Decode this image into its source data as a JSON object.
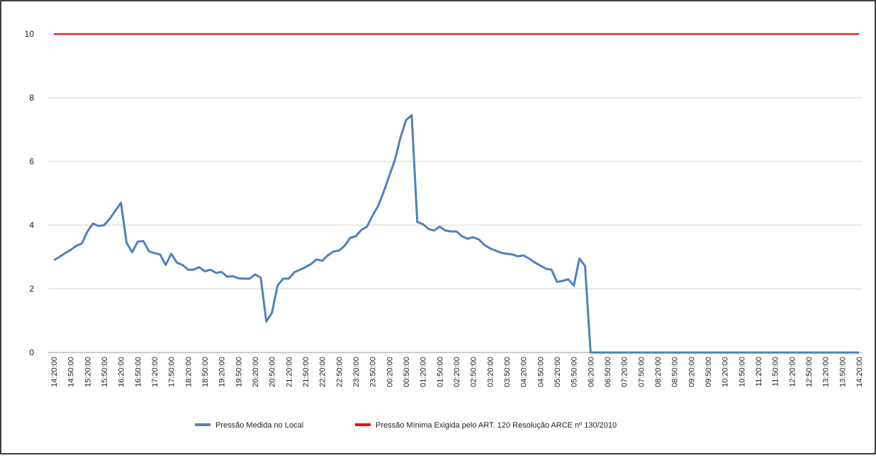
{
  "chart_data": {
    "type": "line",
    "categories": [
      "14:20:00",
      null,
      null,
      "14:50:00",
      null,
      null,
      "15:20:00",
      null,
      null,
      "15:50:00",
      null,
      null,
      "16:20:00",
      null,
      null,
      "16:50:00",
      null,
      null,
      "17:20:00",
      null,
      null,
      "17:50:00",
      null,
      null,
      "18:20:00",
      null,
      null,
      "18:50:00",
      null,
      null,
      "19:20:00",
      null,
      null,
      "19:50:00",
      null,
      null,
      "20:20:00",
      null,
      null,
      "20:50:00",
      null,
      null,
      "21:20:00",
      null,
      null,
      "21:50:00",
      null,
      null,
      "22:20:00",
      null,
      null,
      "22:50:00",
      null,
      null,
      "23:20:00",
      null,
      null,
      "23:50:00",
      null,
      null,
      "00:20:00",
      null,
      null,
      "00:50:00",
      null,
      null,
      "01:20:00",
      null,
      null,
      "01:50:00",
      null,
      null,
      "02:20:00",
      null,
      null,
      "02:50:00",
      null,
      null,
      "03:20:00",
      null,
      null,
      "03:50:00",
      null,
      null,
      "04:20:00",
      null,
      null,
      "04:50:00",
      null,
      null,
      "05:20:00",
      null,
      null,
      "05:50:00",
      null,
      null,
      "06:20:00",
      null,
      null,
      "06:50:00",
      null,
      null,
      "07:20:00",
      null,
      null,
      "07:50:00",
      null,
      null,
      "08:20:00",
      null,
      null,
      "08:50:00",
      null,
      null,
      "09:20:00",
      null,
      null,
      "09:50:00",
      null,
      null,
      "10:20:00",
      null,
      null,
      "10:50:00",
      null,
      null,
      "11:20:00",
      null,
      null,
      "11:50:00",
      null,
      null,
      "12:20:00",
      null,
      null,
      "12:50:00",
      null,
      null,
      "13:20:00",
      null,
      null,
      "13:50:00",
      null,
      null,
      "14:20:00"
    ],
    "series": [
      {
        "name": "Pressão Medida no Local",
        "color": "#4f81bd",
        "values": [
          2.9,
          3.0,
          3.12,
          3.22,
          3.35,
          3.42,
          3.8,
          4.05,
          3.97,
          4.0,
          4.2,
          4.45,
          4.7,
          3.45,
          3.15,
          3.48,
          3.5,
          3.18,
          3.12,
          3.08,
          2.75,
          3.1,
          2.82,
          2.75,
          2.6,
          2.6,
          2.68,
          2.55,
          2.6,
          2.5,
          2.53,
          2.38,
          2.4,
          2.33,
          2.32,
          2.32,
          2.45,
          2.35,
          0.97,
          1.25,
          2.1,
          2.32,
          2.32,
          2.52,
          2.6,
          2.68,
          2.78,
          2.92,
          2.88,
          3.05,
          3.17,
          3.2,
          3.35,
          3.6,
          3.65,
          3.85,
          3.95,
          4.3,
          4.6,
          5.05,
          5.55,
          6.05,
          6.75,
          7.3,
          7.45,
          4.1,
          4.03,
          3.88,
          3.83,
          3.95,
          3.83,
          3.8,
          3.8,
          3.65,
          3.57,
          3.62,
          3.55,
          3.38,
          3.27,
          3.2,
          3.13,
          3.1,
          3.08,
          3.02,
          3.05,
          2.95,
          2.83,
          2.73,
          2.63,
          2.6,
          2.22,
          2.25,
          2.3,
          2.1,
          2.95,
          2.72,
          0,
          0,
          0,
          0,
          0,
          0,
          0,
          0,
          0,
          0,
          0,
          0,
          0,
          0,
          0,
          0,
          0,
          0,
          0,
          0,
          0,
          0,
          0,
          0,
          0,
          0,
          0,
          0,
          0,
          0,
          0,
          0,
          0,
          0,
          0,
          0,
          0,
          0,
          0,
          0,
          0,
          0,
          0,
          0,
          0,
          0,
          0,
          0,
          0
        ]
      },
      {
        "name": "Pressão Mínima Exigida pelo ART. 120 Resolução ARCE nº 130/2010",
        "color": "#ff0000",
        "values": [
          10,
          10,
          10,
          10,
          10,
          10,
          10,
          10,
          10,
          10,
          10,
          10,
          10,
          10,
          10,
          10,
          10,
          10,
          10,
          10,
          10,
          10,
          10,
          10,
          10,
          10,
          10,
          10,
          10,
          10,
          10,
          10,
          10,
          10,
          10,
          10,
          10,
          10,
          10,
          10,
          10,
          10,
          10,
          10,
          10,
          10,
          10,
          10,
          10,
          10,
          10,
          10,
          10,
          10,
          10,
          10,
          10,
          10,
          10,
          10,
          10,
          10,
          10,
          10,
          10,
          10,
          10,
          10,
          10,
          10,
          10,
          10,
          10,
          10,
          10,
          10,
          10,
          10,
          10,
          10,
          10,
          10,
          10,
          10,
          10,
          10,
          10,
          10,
          10,
          10,
          10,
          10,
          10,
          10,
          10,
          10,
          10,
          10,
          10,
          10,
          10,
          10,
          10,
          10,
          10,
          10,
          10,
          10,
          10,
          10,
          10,
          10,
          10,
          10,
          10,
          10,
          10,
          10,
          10,
          10,
          10,
          10,
          10,
          10,
          10,
          10,
          10,
          10,
          10,
          10,
          10,
          10,
          10,
          10,
          10,
          10,
          10,
          10,
          10,
          10,
          10,
          10,
          10,
          10,
          10
        ]
      }
    ],
    "ylim": [
      0,
      10
    ],
    "yticks": [
      0,
      2,
      4,
      6,
      8,
      10
    ],
    "grid": true,
    "legend": "bottom"
  }
}
